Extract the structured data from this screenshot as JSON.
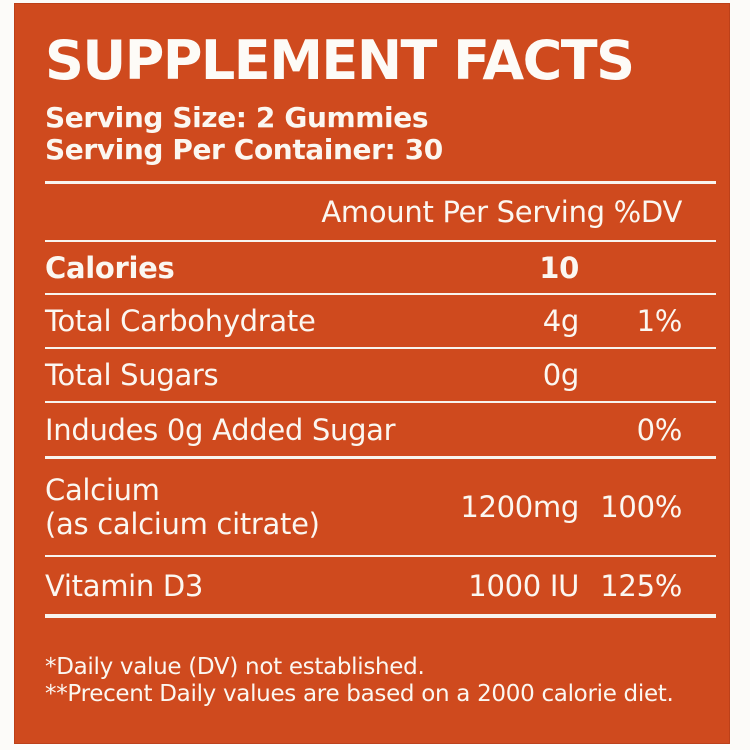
{
  "colors": {
    "panel_background": "#cf4a1e",
    "text": "#fbf7f1",
    "page_background": "#fcfbf9",
    "rule": "#f8f4ee"
  },
  "panel": {
    "title": "SUPPLEMENT FACTS",
    "serving_size": "Serving Size: 2 Gummies",
    "serving_per_container": "Serving Per Container: 30",
    "columns_header": "Amount Per Serving %DV",
    "rows": [
      {
        "label": "Calories",
        "sublabel": "",
        "amount": "10",
        "dv": ""
      },
      {
        "label": "Total Carbohydrate",
        "sublabel": "",
        "amount": "4g",
        "dv": "1%"
      },
      {
        "label": "Total Sugars",
        "sublabel": "",
        "amount": "0g",
        "dv": ""
      },
      {
        "label": "Indudes 0g Added Sugar",
        "sublabel": "",
        "amount": "",
        "dv": "0%"
      },
      {
        "label": "Calcium",
        "sublabel": "(as calcium citrate)",
        "amount": "1200mg",
        "dv": "100%"
      },
      {
        "label": "Vitamin D3",
        "sublabel": "",
        "amount": "1000 IU",
        "dv": "125%"
      }
    ],
    "footnotes": [
      "*Daily value (DV) not established.",
      "**Precent Daily values are based on a 2000 calorie diet."
    ]
  }
}
